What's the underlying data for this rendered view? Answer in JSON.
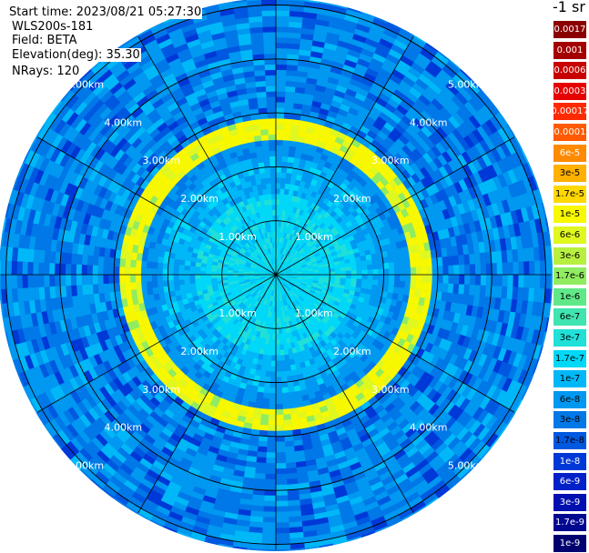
{
  "info": {
    "start_time": "Start time: 2023/08/21 05:27:30",
    "system": "WLS200s-181",
    "field": "Field: BETA",
    "elevation": "Elevation(deg): 35.30",
    "nrays": "NRays: 120"
  },
  "colorbar": {
    "unit": "-1 sr",
    "ticks": [
      {
        "label": "0.0017",
        "color": "#8b0000",
        "text": "#ffffff"
      },
      {
        "label": "0.001",
        "color": "#a50000",
        "text": "#ffffff"
      },
      {
        "label": "0.0006",
        "color": "#c80000",
        "text": "#ffffff"
      },
      {
        "label": "0.0003",
        "color": "#e60000",
        "text": "#ffffff"
      },
      {
        "label": "0.00017",
        "color": "#ff2a00",
        "text": "#ffffff"
      },
      {
        "label": "0.0001",
        "color": "#ff5a00",
        "text": "#ffffff"
      },
      {
        "label": "6e-5",
        "color": "#ff8a00",
        "text": "#ffffff"
      },
      {
        "label": "3e-5",
        "color": "#ffb000",
        "text": "#000000"
      },
      {
        "label": "1.7e-5",
        "color": "#ffd800",
        "text": "#000000"
      },
      {
        "label": "1e-5",
        "color": "#f8f800",
        "text": "#000000"
      },
      {
        "label": "6e-6",
        "color": "#e0f820",
        "text": "#000000"
      },
      {
        "label": "3e-6",
        "color": "#b8f040",
        "text": "#000000"
      },
      {
        "label": "1.7e-6",
        "color": "#90ec60",
        "text": "#000000"
      },
      {
        "label": "1e-6",
        "color": "#60e888",
        "text": "#000000"
      },
      {
        "label": "6e-7",
        "color": "#40e4b0",
        "text": "#000000"
      },
      {
        "label": "3e-7",
        "color": "#20e0d8",
        "text": "#000000"
      },
      {
        "label": "1.7e-7",
        "color": "#00d8f8",
        "text": "#000000"
      },
      {
        "label": "1e-7",
        "color": "#00b8f8",
        "text": "#000000"
      },
      {
        "label": "6e-8",
        "color": "#0098f0",
        "text": "#000000"
      },
      {
        "label": "3e-8",
        "color": "#0078e8",
        "text": "#000000"
      },
      {
        "label": "1.7e-8",
        "color": "#0058e0",
        "text": "#000000"
      },
      {
        "label": "1e-8",
        "color": "#0038d8",
        "text": "#ffffff"
      },
      {
        "label": "6e-9",
        "color": "#0020c8",
        "text": "#ffffff"
      },
      {
        "label": "3e-9",
        "color": "#0010b0",
        "text": "#ffffff"
      },
      {
        "label": "1.7e-9",
        "color": "#000890",
        "text": "#ffffff"
      },
      {
        "label": "1e-9",
        "color": "#000070",
        "text": "#ffffff"
      }
    ]
  },
  "chart_data": {
    "type": "heatmap",
    "projection": "polar-ppi",
    "field": "BETA",
    "range_unit": "km",
    "max_range_km": 5.0,
    "range_rings_km": [
      1.0,
      2.0,
      3.0,
      4.0,
      5.0
    ],
    "ring_labels": [
      "1.00km",
      "2.00km",
      "3.00km",
      "4.00km",
      "5.00km"
    ],
    "radial_spokes_deg": [
      0,
      30,
      60,
      90,
      120,
      150,
      180,
      210,
      240,
      270,
      300,
      330
    ],
    "nrays": 120,
    "background_color": "#1a8ce8",
    "features": [
      {
        "range_km": [
          0.0,
          1.5
        ],
        "beta": "1.7e-7"
      },
      {
        "range_km": [
          1.5,
          2.2
        ],
        "beta": "1e-7"
      },
      {
        "range_km": [
          2.2,
          2.5
        ],
        "beta": "6e-8"
      },
      {
        "range_km": [
          2.5,
          2.9
        ],
        "beta": "1e-5",
        "note": "aerosol ring"
      },
      {
        "range_km": [
          2.9,
          5.0
        ],
        "beta": "3e-8"
      }
    ]
  }
}
